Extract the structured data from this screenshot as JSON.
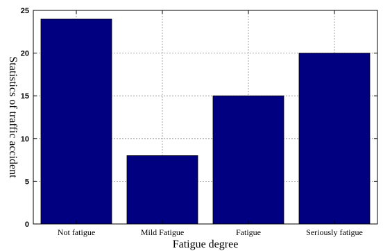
{
  "chart_data": {
    "type": "bar",
    "categories": [
      "Not fatigue",
      "Mild Fatigue",
      "Fatigue",
      "Seriously fatigue"
    ],
    "values": [
      24,
      8,
      15,
      20
    ],
    "xlabel": "Fatigue degree",
    "ylabel": "Statistics of traffic accident",
    "ylim": [
      0,
      25
    ],
    "yticks": [
      "0",
      "5",
      "10",
      "15",
      "20",
      "25"
    ],
    "grid": true,
    "bar_color": "#000080"
  }
}
